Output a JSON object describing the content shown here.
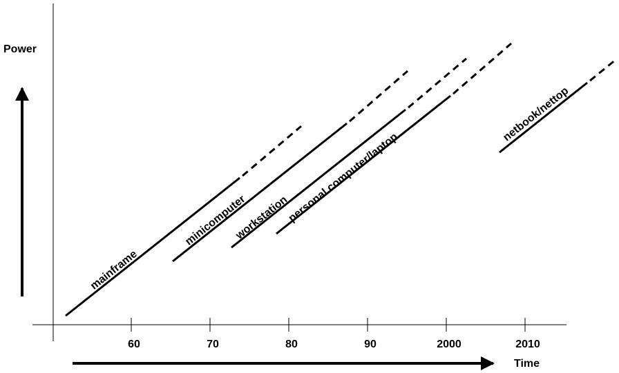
{
  "axis": {
    "y_label": "Power",
    "x_label": "Time",
    "ticks": [
      "60",
      "70",
      "80",
      "90",
      "2000",
      "2010"
    ]
  },
  "eras": [
    {
      "label": "mainframe"
    },
    {
      "label": "minicomputer"
    },
    {
      "label": "workstation"
    },
    {
      "label": "personal computer/laptop"
    },
    {
      "label": "netbook/nettop"
    }
  ]
}
